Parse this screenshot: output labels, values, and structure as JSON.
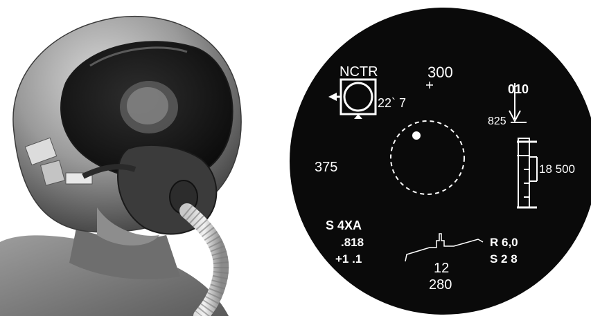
{
  "hud": {
    "nctr_label": "NCTR",
    "altitude_top": "300",
    "target_angle": "22` 7",
    "heading": "010",
    "airspeed_marker": "825",
    "speed_left": "375",
    "altitude_scale_label": "18 500",
    "weapon_mode": "S  4XA",
    "mach": ".818",
    "g_load": "+1 .1",
    "range": "R 6,0",
    "seconds": "S 2 8",
    "center_bottom_value": "12",
    "bottom_heading": "280"
  },
  "colors": {
    "hud_background": "#0a0a0a",
    "hud_symbology": "#ffffff"
  }
}
